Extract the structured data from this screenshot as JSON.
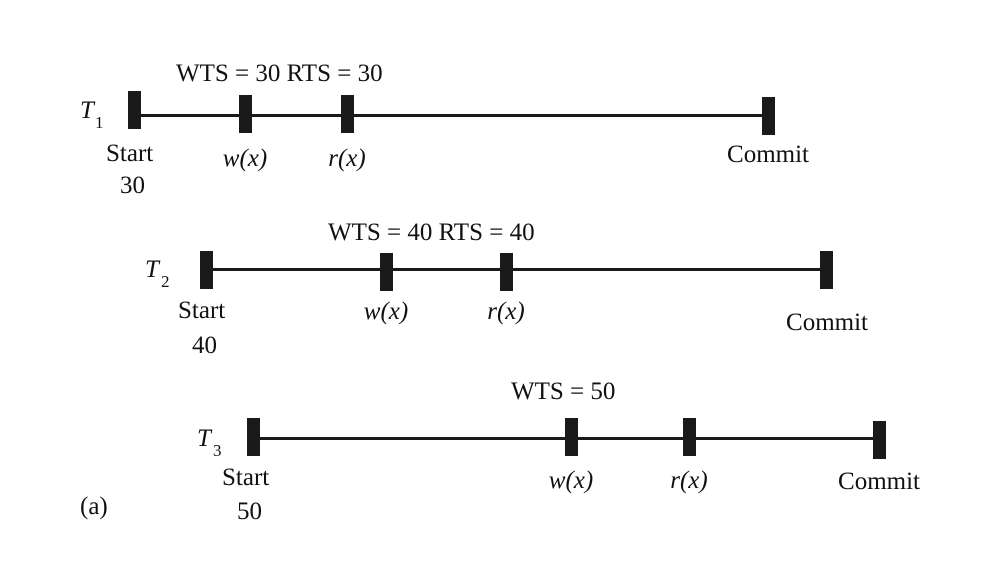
{
  "panel_label": "(a)",
  "transactions": [
    {
      "name": "T",
      "subscript": "1",
      "start_label": "Start",
      "start_ts": "30",
      "write_label": "w(x)",
      "read_label": "r(x)",
      "commit_label": "Commit",
      "annotation": "WTS = 30 RTS = 30"
    },
    {
      "name": "T",
      "subscript": "2",
      "start_label": "Start",
      "start_ts": "40",
      "write_label": "w(x)",
      "read_label": "r(x)",
      "commit_label": "Commit",
      "annotation": "WTS = 40  RTS = 40"
    },
    {
      "name": "T",
      "subscript": "3",
      "start_label": "Start",
      "start_ts": "50",
      "write_label": "w(x)",
      "read_label": "r(x)",
      "commit_label": "Commit",
      "annotation": "WTS = 50"
    }
  ]
}
